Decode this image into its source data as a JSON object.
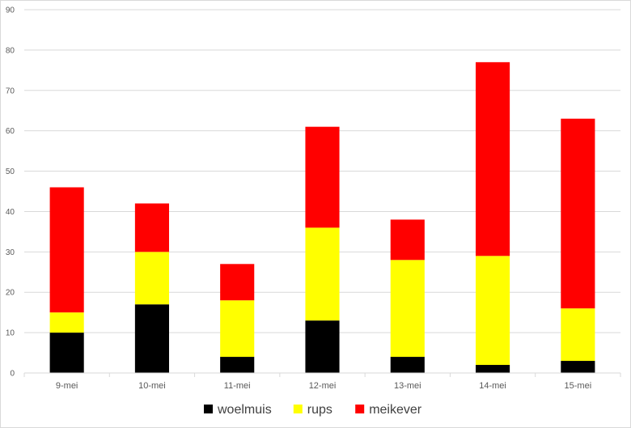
{
  "chart_data": {
    "type": "bar",
    "stacked": true,
    "title": "",
    "xlabel": "",
    "ylabel": "",
    "ylim": [
      0,
      90
    ],
    "ytick_step": 10,
    "grid": true,
    "legend_position": "bottom",
    "categories": [
      "9-mei",
      "10-mei",
      "11-mei",
      "12-mei",
      "13-mei",
      "14-mei",
      "15-mei"
    ],
    "series": [
      {
        "name": "woelmuis",
        "color": "#000000",
        "values": [
          10,
          17,
          4,
          13,
          4,
          2,
          3
        ]
      },
      {
        "name": "rups",
        "color": "#ffff00",
        "values": [
          5,
          13,
          14,
          23,
          24,
          27,
          13
        ]
      },
      {
        "name": "meikever",
        "color": "#ff0000",
        "values": [
          31,
          12,
          9,
          25,
          10,
          48,
          47
        ]
      }
    ]
  }
}
